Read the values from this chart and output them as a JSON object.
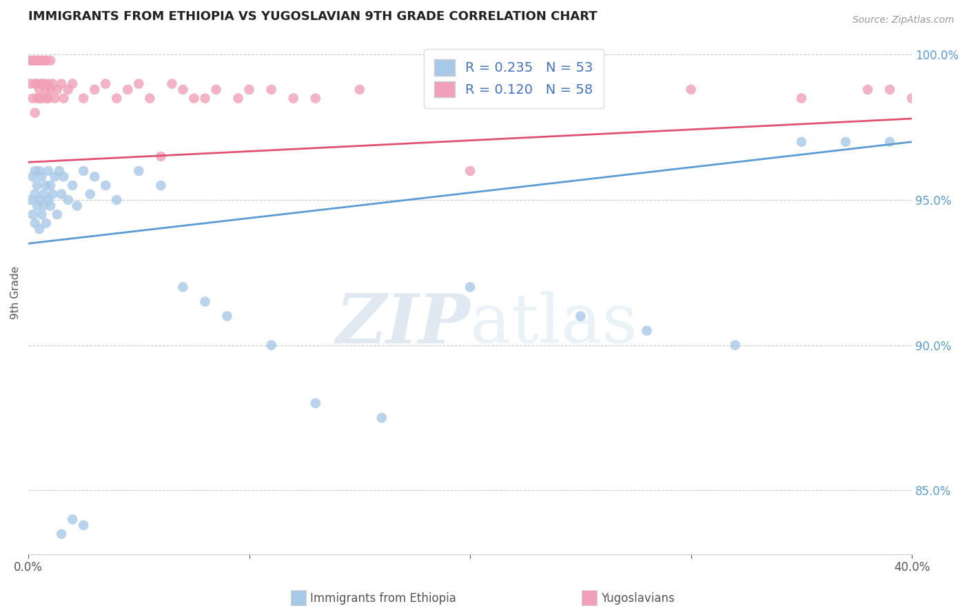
{
  "title": "IMMIGRANTS FROM ETHIOPIA VS YUGOSLAVIAN 9TH GRADE CORRELATION CHART",
  "source_text": "Source: ZipAtlas.com",
  "ylabel": "9th Grade",
  "xlim": [
    0.0,
    0.4
  ],
  "ylim": [
    0.828,
    1.008
  ],
  "yticks_right": [
    0.85,
    0.9,
    0.95,
    1.0
  ],
  "ytick_labels_right": [
    "85.0%",
    "90.0%",
    "95.0%",
    "100.0%"
  ],
  "blue_color": "#a8c8e8",
  "pink_color": "#f0a0b8",
  "blue_line_color": "#5b9bd5",
  "pink_line_color": "#e05070",
  "blue_R": 0.235,
  "blue_N": 53,
  "pink_R": 0.12,
  "pink_N": 58,
  "watermark_zip": "ZIP",
  "watermark_atlas": "atlas",
  "title_fontsize": 13,
  "background_color": "#ffffff",
  "grid_color": "#cccccc",
  "ethiopia_x": [
    0.001,
    0.002,
    0.002,
    0.003,
    0.003,
    0.003,
    0.004,
    0.004,
    0.005,
    0.005,
    0.005,
    0.006,
    0.006,
    0.007,
    0.007,
    0.008,
    0.008,
    0.009,
    0.009,
    0.01,
    0.01,
    0.011,
    0.012,
    0.013,
    0.014,
    0.015,
    0.016,
    0.018,
    0.02,
    0.022,
    0.025,
    0.028,
    0.03,
    0.035,
    0.04,
    0.05,
    0.06,
    0.07,
    0.08,
    0.09,
    0.11,
    0.13,
    0.16,
    0.2,
    0.25,
    0.28,
    0.32,
    0.35,
    0.37,
    0.39,
    0.015,
    0.02,
    0.025
  ],
  "ethiopia_y": [
    0.95,
    0.958,
    0.945,
    0.96,
    0.952,
    0.942,
    0.948,
    0.955,
    0.95,
    0.94,
    0.96,
    0.945,
    0.958,
    0.952,
    0.948,
    0.955,
    0.942,
    0.96,
    0.95,
    0.948,
    0.955,
    0.952,
    0.958,
    0.945,
    0.96,
    0.952,
    0.958,
    0.95,
    0.955,
    0.948,
    0.96,
    0.952,
    0.958,
    0.955,
    0.95,
    0.96,
    0.955,
    0.92,
    0.915,
    0.91,
    0.9,
    0.88,
    0.875,
    0.92,
    0.91,
    0.905,
    0.9,
    0.97,
    0.97,
    0.97,
    0.835,
    0.84,
    0.838
  ],
  "yugoslav_x": [
    0.001,
    0.001,
    0.002,
    0.002,
    0.003,
    0.003,
    0.003,
    0.004,
    0.004,
    0.004,
    0.005,
    0.005,
    0.005,
    0.006,
    0.006,
    0.006,
    0.007,
    0.007,
    0.008,
    0.008,
    0.008,
    0.009,
    0.009,
    0.01,
    0.01,
    0.011,
    0.012,
    0.013,
    0.015,
    0.016,
    0.018,
    0.02,
    0.025,
    0.03,
    0.035,
    0.04,
    0.05,
    0.06,
    0.07,
    0.08,
    0.1,
    0.12,
    0.15,
    0.2,
    0.25,
    0.3,
    0.35,
    0.38,
    0.4,
    0.39,
    0.045,
    0.055,
    0.065,
    0.075,
    0.085,
    0.095,
    0.11,
    0.13
  ],
  "yugoslav_y": [
    0.99,
    0.998,
    0.985,
    0.998,
    0.99,
    0.98,
    0.998,
    0.99,
    0.985,
    0.998,
    0.988,
    0.998,
    0.985,
    0.99,
    0.998,
    0.985,
    0.99,
    0.998,
    0.988,
    0.985,
    0.998,
    0.99,
    0.985,
    0.988,
    0.998,
    0.99,
    0.985,
    0.988,
    0.99,
    0.985,
    0.988,
    0.99,
    0.985,
    0.988,
    0.99,
    0.985,
    0.99,
    0.965,
    0.988,
    0.985,
    0.988,
    0.985,
    0.988,
    0.96,
    0.985,
    0.988,
    0.985,
    0.988,
    0.985,
    0.988,
    0.988,
    0.985,
    0.99,
    0.985,
    0.988,
    0.985,
    0.988,
    0.985
  ]
}
